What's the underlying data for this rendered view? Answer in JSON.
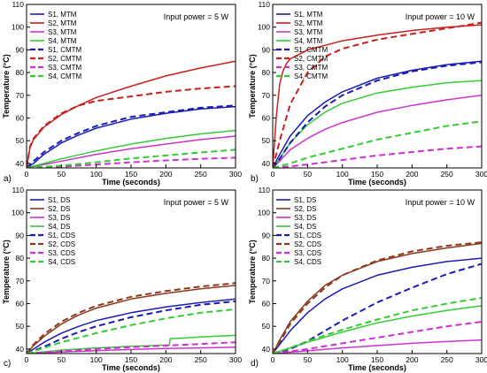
{
  "chart_data": [
    {
      "panel_label": "a)",
      "type": "line",
      "annotation": "Input power = 5 W",
      "xlabel": "Time (seconds)",
      "ylabel": "Temperature (°C)",
      "xlim": [
        0,
        300
      ],
      "ylim": [
        38,
        110
      ],
      "xticks": [
        0,
        50,
        100,
        150,
        200,
        250,
        300
      ],
      "yticks": [
        40,
        50,
        60,
        70,
        80,
        90,
        100,
        110
      ],
      "grid": false,
      "legend_position": "top-left",
      "series": [
        {
          "name": "S1, MTM",
          "color": "#1c1cb4",
          "dash": "solid",
          "x": [
            0,
            10,
            25,
            50,
            75,
            100,
            150,
            200,
            250,
            300
          ],
          "values": [
            38,
            40,
            44,
            49,
            52.5,
            55.5,
            59.5,
            62,
            64,
            65
          ]
        },
        {
          "name": "S2, MTM",
          "color": "#c8201c",
          "dash": "solid",
          "x": [
            0,
            5,
            10,
            25,
            50,
            75,
            100,
            150,
            200,
            250,
            300
          ],
          "values": [
            38,
            47,
            50.5,
            56,
            61.5,
            65.5,
            69,
            74,
            78.5,
            82,
            85
          ]
        },
        {
          "name": "S3, MTM",
          "color": "#cc33cc",
          "dash": "solid",
          "x": [
            0,
            25,
            50,
            100,
            150,
            200,
            250,
            300
          ],
          "values": [
            38,
            39.5,
            41,
            44,
            46.5,
            48.5,
            50.5,
            52
          ]
        },
        {
          "name": "S4, MTM",
          "color": "#33cc33",
          "dash": "solid",
          "x": [
            0,
            25,
            50,
            100,
            150,
            200,
            250,
            300
          ],
          "values": [
            38,
            40,
            42,
            45.5,
            48.5,
            51,
            53,
            54.5
          ]
        },
        {
          "name": "S1, CMTM",
          "color": "#1c1cb4",
          "dash": "dash",
          "x": [
            0,
            10,
            25,
            50,
            75,
            100,
            150,
            200,
            250,
            300
          ],
          "values": [
            38,
            41,
            45,
            50,
            53.5,
            56.5,
            60.5,
            62.5,
            64.5,
            65.5
          ]
        },
        {
          "name": "S2, CMTM",
          "color": "#c8201c",
          "dash": "dash",
          "x": [
            0,
            5,
            10,
            25,
            50,
            75,
            100,
            150,
            200,
            250,
            300
          ],
          "values": [
            38,
            47.5,
            51,
            56.5,
            62,
            65.5,
            67.5,
            69.5,
            71.5,
            73,
            74
          ]
        },
        {
          "name": "S3, CMTM",
          "color": "#cc33cc",
          "dash": "dash",
          "x": [
            0,
            50,
            100,
            150,
            200,
            250,
            300
          ],
          "values": [
            38,
            38.5,
            39.5,
            40.5,
            41.3,
            42,
            42.5
          ]
        },
        {
          "name": "S4, CMTM",
          "color": "#33cc33",
          "dash": "dash",
          "x": [
            0,
            50,
            100,
            150,
            200,
            250,
            300
          ],
          "values": [
            38,
            39,
            40.5,
            42.2,
            43.5,
            44.8,
            46
          ]
        }
      ]
    },
    {
      "panel_label": "b)",
      "type": "line",
      "annotation": "Input power = 10 W",
      "xlabel": "Time (seconds)",
      "ylabel": "Temperature (°C)",
      "xlim": [
        0,
        300
      ],
      "ylim": [
        38,
        110
      ],
      "xticks": [
        0,
        50,
        100,
        150,
        200,
        250,
        300
      ],
      "yticks": [
        40,
        50,
        60,
        70,
        80,
        90,
        100,
        110
      ],
      "grid": false,
      "legend_position": "top-left",
      "series": [
        {
          "name": "S1, MTM",
          "color": "#1c1cb4",
          "dash": "solid",
          "x": [
            0,
            10,
            25,
            50,
            75,
            100,
            150,
            200,
            250,
            300
          ],
          "values": [
            38,
            44,
            52,
            61,
            67,
            71.5,
            77.5,
            81,
            83.5,
            85
          ]
        },
        {
          "name": "S2, MTM",
          "color": "#c8201c",
          "dash": "solid",
          "x": [
            0,
            5,
            10,
            15,
            20,
            25,
            50,
            75,
            100,
            150,
            200,
            250,
            300
          ],
          "values": [
            38,
            60,
            75,
            81,
            84,
            86,
            90,
            92,
            94,
            96.5,
            98.5,
            100,
            101
          ]
        },
        {
          "name": "S3, MTM",
          "color": "#cc33cc",
          "dash": "solid",
          "x": [
            0,
            10,
            25,
            50,
            75,
            100,
            150,
            200,
            250,
            300
          ],
          "values": [
            38,
            41,
            46,
            51,
            55,
            58,
            62.5,
            65.5,
            68,
            70
          ]
        },
        {
          "name": "S4, MTM",
          "color": "#33cc33",
          "dash": "solid",
          "x": [
            0,
            10,
            25,
            50,
            75,
            100,
            150,
            200,
            250,
            300
          ],
          "values": [
            38,
            42,
            49,
            57,
            62.5,
            66.5,
            71,
            73.5,
            75.5,
            76.5
          ]
        },
        {
          "name": "S1, CMTM",
          "color": "#1c1cb4",
          "dash": "dash",
          "x": [
            0,
            10,
            25,
            50,
            75,
            100,
            150,
            200,
            250,
            300
          ],
          "values": [
            38,
            42,
            49,
            58,
            65,
            70,
            76.5,
            80.5,
            83,
            84.5
          ]
        },
        {
          "name": "S2, CMTM",
          "color": "#c8201c",
          "dash": "dash",
          "x": [
            0,
            10,
            25,
            50,
            75,
            100,
            150,
            200,
            250,
            300
          ],
          "values": [
            38,
            50,
            66,
            80,
            87,
            90.5,
            94.5,
            97,
            99.5,
            102
          ]
        },
        {
          "name": "S3, CMTM",
          "color": "#cc33cc",
          "dash": "dash",
          "x": [
            0,
            25,
            50,
            100,
            150,
            200,
            250,
            300
          ],
          "values": [
            38,
            38.7,
            39.5,
            41.5,
            43.5,
            45,
            46.5,
            47.5
          ]
        },
        {
          "name": "S4, CMTM",
          "color": "#33cc33",
          "dash": "dash",
          "x": [
            0,
            25,
            50,
            100,
            150,
            200,
            250,
            300
          ],
          "values": [
            38,
            40,
            42.5,
            46.5,
            50.5,
            53.5,
            56.5,
            58.5
          ]
        }
      ]
    },
    {
      "panel_label": "c)",
      "type": "line",
      "annotation": "Input power = 5 W",
      "xlabel": "Time (seconds)",
      "ylabel": "Temperature (°C)",
      "xlim": [
        0,
        300
      ],
      "ylim": [
        38,
        110
      ],
      "xticks": [
        0,
        50,
        100,
        150,
        200,
        250,
        300
      ],
      "yticks": [
        40,
        50,
        60,
        70,
        80,
        90,
        100,
        110
      ],
      "grid": false,
      "legend_position": "top-left",
      "series": [
        {
          "name": "S1, DS",
          "color": "#1c1cb4",
          "dash": "solid",
          "x": [
            0,
            10,
            25,
            50,
            75,
            100,
            150,
            200,
            250,
            300
          ],
          "values": [
            38,
            40,
            43,
            47,
            50,
            52.5,
            56,
            58.5,
            60.5,
            62
          ]
        },
        {
          "name": "S2, DS",
          "color": "#8b3a1e",
          "dash": "solid",
          "x": [
            0,
            10,
            25,
            50,
            75,
            100,
            150,
            200,
            250,
            300
          ],
          "values": [
            38,
            41.5,
            45.5,
            51,
            55,
            58,
            62,
            64.5,
            66.5,
            68
          ]
        },
        {
          "name": "S3, DS",
          "color": "#cc33cc",
          "dash": "solid",
          "x": [
            0,
            50,
            100,
            150,
            200,
            250,
            300
          ],
          "values": [
            38,
            38.7,
            39.3,
            39.8,
            40.2,
            40.5,
            40.8
          ]
        },
        {
          "name": "S4, DS",
          "color": "#33cc33",
          "dash": "solid",
          "x": [
            0,
            50,
            100,
            150,
            205,
            206,
            250,
            300
          ],
          "values": [
            38,
            39.5,
            40.5,
            41.2,
            41.8,
            44.5,
            45.3,
            46
          ]
        },
        {
          "name": "S1, CDS",
          "color": "#1c1cb4",
          "dash": "dash",
          "x": [
            0,
            25,
            50,
            75,
            100,
            150,
            200,
            250,
            300
          ],
          "values": [
            38,
            41,
            44.5,
            47.5,
            50,
            54,
            57,
            59.5,
            61
          ]
        },
        {
          "name": "S2, CDS",
          "color": "#8b3a1e",
          "dash": "dash",
          "x": [
            0,
            10,
            25,
            50,
            75,
            100,
            150,
            200,
            250,
            300
          ],
          "values": [
            38,
            42,
            46.5,
            52,
            56,
            59,
            63,
            65.5,
            67.5,
            69
          ]
        },
        {
          "name": "S3, CDS",
          "color": "#cc33cc",
          "dash": "dash",
          "x": [
            0,
            50,
            100,
            150,
            200,
            250,
            300
          ],
          "values": [
            38,
            39,
            40,
            40.8,
            41.5,
            42.2,
            43
          ]
        },
        {
          "name": "S4, CDS",
          "color": "#33cc33",
          "dash": "dash",
          "x": [
            0,
            25,
            50,
            100,
            150,
            200,
            250,
            300
          ],
          "values": [
            38,
            40.5,
            43,
            47,
            50.5,
            53.5,
            56,
            57.5
          ]
        }
      ]
    },
    {
      "panel_label": "d)",
      "type": "line",
      "annotation": "Input power = 10 W",
      "xlabel": "Time (seconds)",
      "ylabel": "Temperature (°C)",
      "xlim": [
        0,
        300
      ],
      "ylim": [
        38,
        110
      ],
      "xticks": [
        0,
        50,
        100,
        150,
        200,
        250,
        300
      ],
      "yticks": [
        40,
        50,
        60,
        70,
        80,
        90,
        100,
        110
      ],
      "grid": false,
      "legend_position": "top-left",
      "series": [
        {
          "name": "S1, DS",
          "color": "#1c1cb4",
          "dash": "solid",
          "x": [
            0,
            10,
            25,
            50,
            75,
            100,
            150,
            200,
            250,
            300
          ],
          "values": [
            38,
            42,
            48,
            56,
            62,
            66.5,
            72.5,
            76,
            78.5,
            80
          ]
        },
        {
          "name": "S2, DS",
          "color": "#8b3a1e",
          "dash": "solid",
          "x": [
            0,
            10,
            25,
            50,
            75,
            100,
            150,
            200,
            250,
            300
          ],
          "values": [
            38,
            44,
            52,
            61,
            68,
            72.5,
            78.5,
            82,
            84.5,
            86.5
          ]
        },
        {
          "name": "S3, DS",
          "color": "#cc33cc",
          "dash": "solid",
          "x": [
            0,
            50,
            100,
            150,
            200,
            250,
            300
          ],
          "values": [
            38,
            39.2,
            40.5,
            41.5,
            42.5,
            43.3,
            44
          ]
        },
        {
          "name": "S4, DS",
          "color": "#33cc33",
          "dash": "solid",
          "x": [
            0,
            25,
            50,
            100,
            150,
            200,
            250,
            300
          ],
          "values": [
            38,
            40.5,
            43,
            47.5,
            51.5,
            54.5,
            57,
            59
          ]
        },
        {
          "name": "S1, CDS",
          "color": "#1c1cb4",
          "dash": "dash",
          "x": [
            0,
            25,
            50,
            75,
            100,
            150,
            200,
            250,
            300
          ],
          "values": [
            38,
            40,
            43.5,
            48,
            52.5,
            60.5,
            67,
            73,
            77.5
          ]
        },
        {
          "name": "S2, CDS",
          "color": "#8b3a1e",
          "dash": "dash",
          "x": [
            0,
            10,
            25,
            50,
            75,
            100,
            150,
            200,
            250,
            300
          ],
          "values": [
            38,
            43,
            51,
            60,
            67,
            72.5,
            79,
            83,
            85.5,
            87
          ]
        },
        {
          "name": "S3, CDS",
          "color": "#cc33cc",
          "dash": "dash",
          "x": [
            0,
            50,
            100,
            150,
            200,
            250,
            300
          ],
          "values": [
            38,
            40,
            42.5,
            45,
            47.5,
            50,
            52
          ]
        },
        {
          "name": "S4, CDS",
          "color": "#33cc33",
          "dash": "dash",
          "x": [
            0,
            25,
            50,
            100,
            150,
            200,
            250,
            300
          ],
          "values": [
            38,
            40.5,
            43.5,
            48.5,
            53,
            57,
            60,
            62.5
          ]
        }
      ]
    }
  ]
}
